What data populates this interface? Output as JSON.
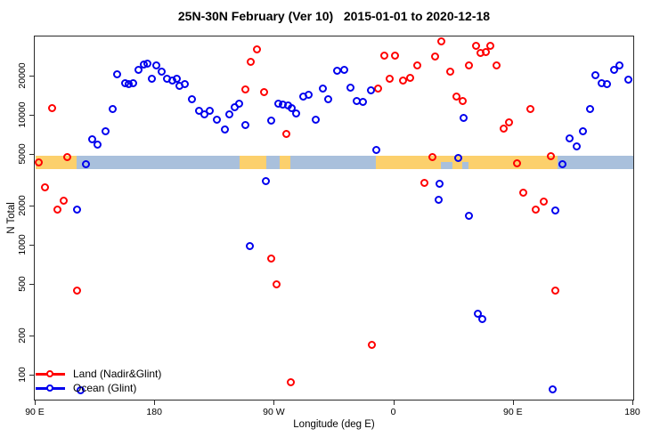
{
  "figure": {
    "title": "25N-30N February (Ver 10)   2015-01-01 to 2020-12-18",
    "xlabel": "Longitude (deg E)",
    "ylabel": "N Total"
  },
  "chart_data": {
    "type": "scatter",
    "title": "25N-30N February (Ver 10)   2015-01-01 to 2020-12-18",
    "xlabel": "Longitude (deg E)",
    "ylabel": "N Total",
    "x_axis": {
      "note": "longitude axis wraps eastward from 90E through 180, 90W, 0, 90E to 180 (450 deg span); positions stored as degrees east of 90E",
      "range_deg": [
        0,
        450
      ],
      "ticks": [
        {
          "deg": 0,
          "label": "90 E"
        },
        {
          "deg": 90,
          "label": "180"
        },
        {
          "deg": 180,
          "label": "90 W"
        },
        {
          "deg": 270,
          "label": "0"
        },
        {
          "deg": 360,
          "label": "90 E"
        },
        {
          "deg": 450,
          "label": "180"
        }
      ]
    },
    "y_axis": {
      "scale": "log",
      "range": [
        63,
        41000
      ],
      "ticks": [
        100,
        200,
        500,
        1000,
        2000,
        5000,
        10000,
        20000
      ]
    },
    "grid": "off",
    "legend_position": "bottom-left",
    "legend": [
      {
        "label": "Land (Nadir&Glint)",
        "color": "#ff0000"
      },
      {
        "label": "Ocean (Glint)",
        "color": "#0000ee"
      }
    ],
    "map_band": {
      "description": "land/ocean strip along 25N-30N drawn across the plot near N=4400",
      "value_top": 4900,
      "value_bottom": 3900,
      "land_color": "#fcd06c",
      "ocean_color": "#a9c0dc",
      "segments": [
        {
          "type": "land",
          "from": 0,
          "to": 31
        },
        {
          "type": "ocean",
          "from": 31,
          "to": 153.6
        },
        {
          "type": "land",
          "from": 153.6,
          "to": 173.7
        },
        {
          "type": "ocean",
          "from": 173.7,
          "to": 183.7
        },
        {
          "type": "land",
          "from": 183.7,
          "to": 191.8
        },
        {
          "type": "ocean",
          "from": 191.8,
          "to": 256.2
        },
        {
          "type": "land",
          "from": 256.2,
          "to": 393
        },
        {
          "type": "ocean",
          "from": 305,
          "to": 314,
          "half": true
        },
        {
          "type": "ocean",
          "from": 321,
          "to": 326,
          "half": true
        },
        {
          "type": "ocean",
          "from": 393,
          "to": 450
        }
      ]
    },
    "series": [
      {
        "name": "Land (Nadir&Glint)",
        "color": "#ff0000",
        "marker": "open-circle",
        "points": [
          [
            2.7,
            4330
          ],
          [
            7.4,
            2770
          ],
          [
            12.7,
            11300
          ],
          [
            16.8,
            1890
          ],
          [
            21.5,
            2210
          ],
          [
            24.0,
            4800
          ],
          [
            31.5,
            447
          ],
          [
            158.3,
            15800
          ],
          [
            162.3,
            25600
          ],
          [
            167.0,
            31900
          ],
          [
            172.4,
            15100
          ],
          [
            177.7,
            795
          ],
          [
            181.8,
            500
          ],
          [
            189.1,
            7230
          ],
          [
            192.5,
            88
          ],
          [
            253.5,
            170
          ],
          [
            258.2,
            16100
          ],
          [
            262.9,
            28600
          ],
          [
            266.9,
            19100
          ],
          [
            271.0,
            28600
          ],
          [
            277.0,
            18600
          ],
          [
            282.3,
            19500
          ],
          [
            287.7,
            24000
          ],
          [
            293.1,
            3000
          ],
          [
            299.1,
            4770
          ],
          [
            301.1,
            28200
          ],
          [
            305.8,
            36900
          ],
          [
            312.5,
            21800
          ],
          [
            317.2,
            13900
          ],
          [
            321.9,
            12900
          ],
          [
            326.6,
            24000
          ],
          [
            331.9,
            34100
          ],
          [
            335.3,
            30300
          ],
          [
            339.3,
            30500
          ],
          [
            342.7,
            34100
          ],
          [
            347.4,
            24000
          ],
          [
            352.7,
            7950
          ],
          [
            356.8,
            8760
          ],
          [
            362.8,
            4270
          ],
          [
            367.5,
            2550
          ],
          [
            372.9,
            11100
          ],
          [
            376.9,
            1890
          ],
          [
            383.0,
            2180
          ],
          [
            388.3,
            4850
          ],
          [
            391.6,
            447
          ]
        ]
      },
      {
        "name": "Ocean (Glint)",
        "color": "#0000ee",
        "marker": "open-circle",
        "points": [
          [
            31.5,
            1890
          ],
          [
            34.2,
            77
          ],
          [
            38.0,
            4200
          ],
          [
            42.9,
            6560
          ],
          [
            46.9,
            5970
          ],
          [
            53.0,
            7580
          ],
          [
            58.3,
            11100
          ],
          [
            61.7,
            20700
          ],
          [
            67.7,
            17700
          ],
          [
            70.4,
            17500
          ],
          [
            73.8,
            17700
          ],
          [
            77.8,
            22500
          ],
          [
            81.8,
            24400
          ],
          [
            84.5,
            25100
          ],
          [
            87.9,
            19100
          ],
          [
            91.2,
            24000
          ],
          [
            95.2,
            21800
          ],
          [
            99.3,
            19100
          ],
          [
            103.3,
            18600
          ],
          [
            106.6,
            19100
          ],
          [
            108.6,
            16900
          ],
          [
            112.7,
            17500
          ],
          [
            118.0,
            13300
          ],
          [
            123.4,
            10900
          ],
          [
            127.4,
            10100
          ],
          [
            131.5,
            10900
          ],
          [
            136.8,
            9180
          ],
          [
            142.9,
            7830
          ],
          [
            146.2,
            10200
          ],
          [
            150.2,
            11500
          ],
          [
            153.6,
            12200
          ],
          [
            158.3,
            8470
          ],
          [
            161.6,
            980
          ],
          [
            173.7,
            3100
          ],
          [
            177.7,
            9040
          ],
          [
            183.1,
            12200
          ],
          [
            186.5,
            12000
          ],
          [
            190.5,
            11900
          ],
          [
            193.2,
            11300
          ],
          [
            196.5,
            10400
          ],
          [
            201.9,
            13900
          ],
          [
            205.9,
            14300
          ],
          [
            211.3,
            9180
          ],
          [
            216.6,
            16100
          ],
          [
            220.7,
            13300
          ],
          [
            227.4,
            22100
          ],
          [
            232.7,
            22400
          ],
          [
            237.4,
            16300
          ],
          [
            242.1,
            12900
          ],
          [
            246.8,
            12600
          ],
          [
            252.8,
            15600
          ],
          [
            256.9,
            5420
          ],
          [
            303.8,
            2250
          ],
          [
            304.5,
            2950
          ],
          [
            318.6,
            4690
          ],
          [
            322.6,
            9480
          ],
          [
            326.6,
            1690
          ],
          [
            333.3,
            295
          ],
          [
            336.6,
            272
          ],
          [
            389.6,
            78
          ],
          [
            391.6,
            1860
          ],
          [
            397.0,
            4200
          ],
          [
            402.4,
            6670
          ],
          [
            407.7,
            5780
          ],
          [
            412.4,
            7580
          ],
          [
            417.8,
            11100
          ],
          [
            421.8,
            20400
          ],
          [
            426.5,
            17700
          ],
          [
            430.6,
            17400
          ],
          [
            435.9,
            22400
          ],
          [
            439.9,
            24000
          ],
          [
            446.6,
            18900
          ]
        ]
      }
    ]
  }
}
